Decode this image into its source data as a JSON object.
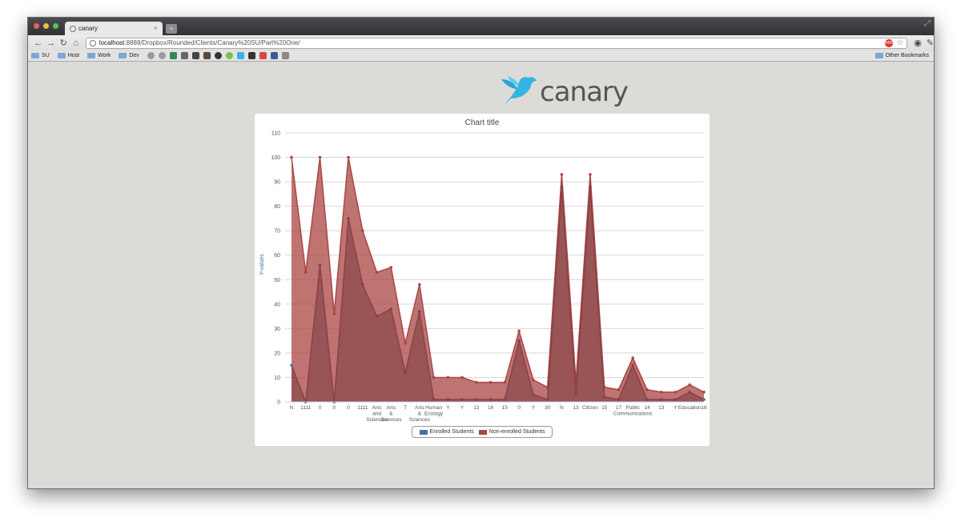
{
  "browser": {
    "tab_title": "canary",
    "url_host": "localhost",
    "url_rest": ":8888/Dropbox/Rounded/Clients/Canary%20SU/Part%20One/",
    "bookmarks": [
      "SU",
      "Host",
      "Work",
      "Dev"
    ],
    "other_bookmarks": "Other Bookmarks"
  },
  "brand": {
    "logo_text": "canary",
    "accent": "#33b5e5"
  },
  "chart_data": {
    "type": "area",
    "title": "Chart title",
    "ylabel": "Y-values",
    "xlabel": "",
    "ylim": [
      0,
      110
    ],
    "yticks": [
      0,
      10,
      20,
      30,
      40,
      50,
      60,
      70,
      80,
      90,
      100,
      110
    ],
    "categories": [
      "N",
      "1111",
      "0",
      "0",
      "0",
      "1111",
      "Arts and Sciences",
      "Arts & Sciences",
      "T",
      "Arts & Sciences",
      "Human Ecology",
      "Y",
      "Y",
      "13",
      "16",
      "15",
      "0",
      "Y",
      "30",
      "N",
      "13",
      "Citizen",
      "15",
      "17",
      "Public Communications",
      "14",
      "13",
      "Y",
      "Education",
      "16"
    ],
    "series": [
      {
        "name": "Enrolled Students",
        "color": "#4572a7",
        "values": [
          15,
          0,
          56,
          0,
          75,
          48,
          35,
          38,
          12,
          37,
          1,
          1,
          1,
          1,
          1,
          1,
          25,
          3,
          1,
          88,
          3,
          88,
          2,
          1,
          15,
          1,
          1,
          1,
          4,
          1
        ]
      },
      {
        "name": "Non-enrolled Students",
        "color": "#aa4643",
        "values": [
          100,
          53,
          100,
          36,
          100,
          70,
          53,
          55,
          24,
          48,
          10,
          10,
          10,
          8,
          8,
          8,
          29,
          9,
          6,
          93,
          8,
          93,
          6,
          5,
          18,
          5,
          4,
          4,
          7,
          4
        ]
      }
    ],
    "legend_position": "bottom-center",
    "grid": true
  }
}
